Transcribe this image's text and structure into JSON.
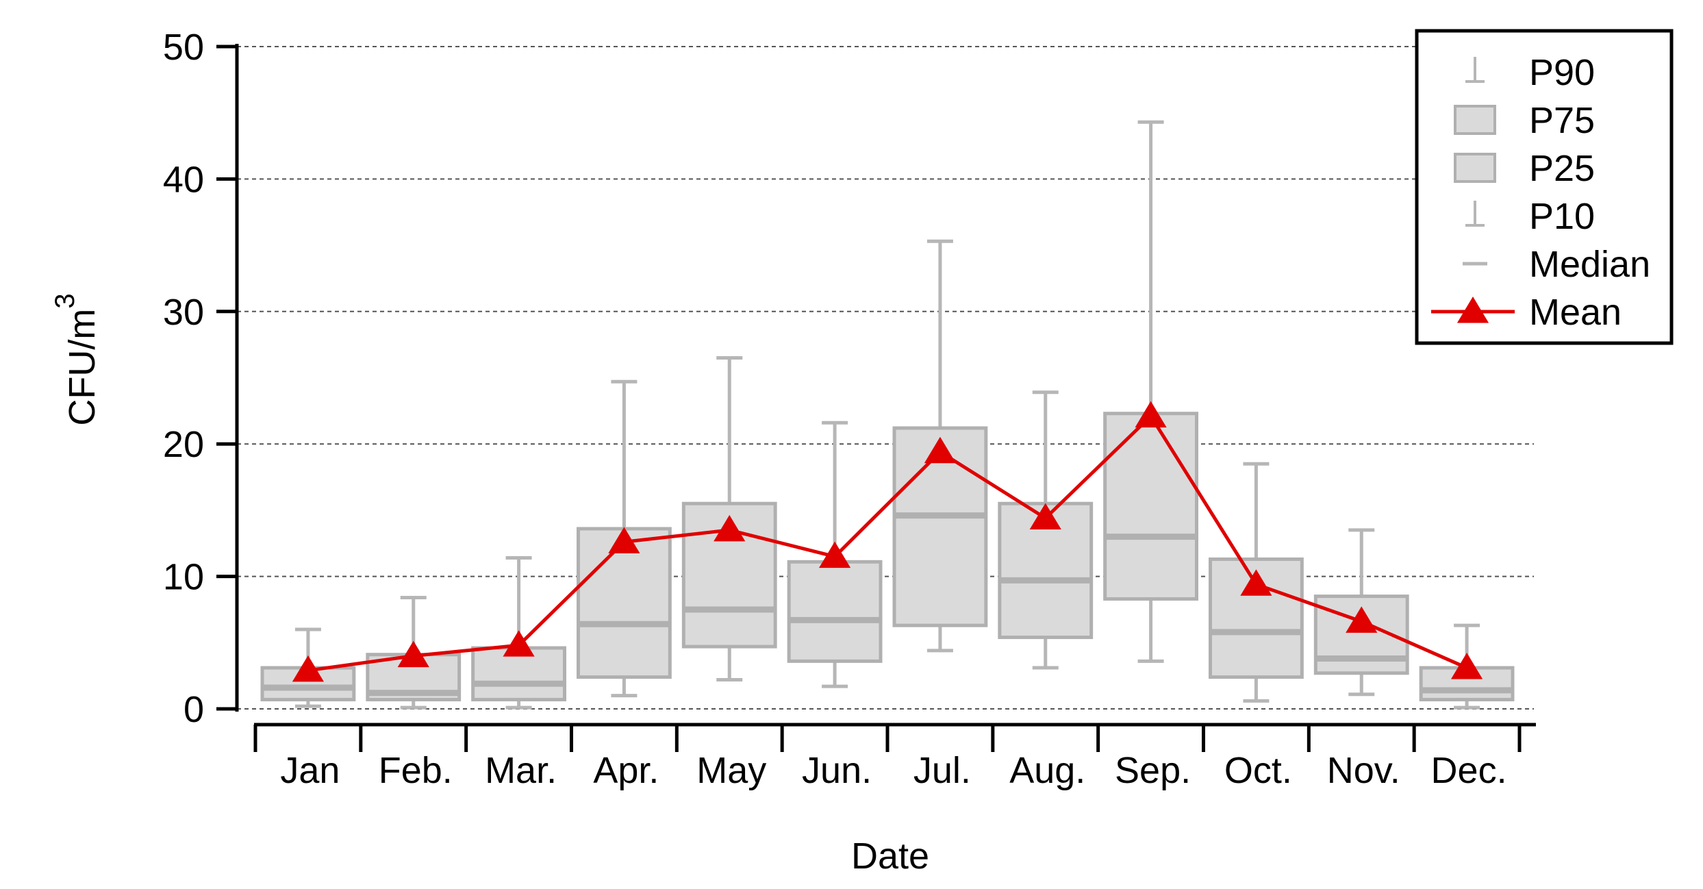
{
  "chart_data": {
    "type": "box",
    "xlabel": "Date",
    "ylabel_main": "CFU/m",
    "ylabel_sup": "3",
    "ylim": [
      0,
      50
    ],
    "yticks": [
      0,
      10,
      20,
      30,
      40,
      50
    ],
    "grid": "horizontal dashed",
    "legend_position": "top-right",
    "categories": [
      "Jan",
      "Feb.",
      "Mar.",
      "Apr.",
      "May",
      "Jun.",
      "Jul.",
      "Aug.",
      "Sep.",
      "Oct.",
      "Nov.",
      "Dec."
    ],
    "series": [
      {
        "name": "P90",
        "values": [
          6.0,
          8.4,
          11.4,
          24.7,
          26.5,
          21.6,
          35.3,
          23.9,
          44.3,
          18.5,
          13.5,
          6.3
        ]
      },
      {
        "name": "P75",
        "values": [
          3.1,
          4.1,
          4.6,
          13.6,
          15.5,
          11.1,
          21.2,
          15.5,
          22.3,
          11.3,
          8.5,
          3.1
        ]
      },
      {
        "name": "P25",
        "values": [
          0.7,
          0.7,
          0.7,
          2.4,
          4.7,
          3.6,
          6.3,
          5.4,
          8.3,
          2.4,
          2.7,
          0.7
        ]
      },
      {
        "name": "P10",
        "values": [
          0.2,
          0.1,
          0.1,
          1.0,
          2.2,
          1.7,
          4.4,
          3.1,
          3.6,
          0.6,
          1.1,
          0.1
        ]
      },
      {
        "name": "Median",
        "values": [
          1.6,
          1.2,
          1.9,
          6.4,
          7.5,
          6.7,
          14.6,
          9.7,
          13.0,
          5.8,
          3.8,
          1.4
        ]
      },
      {
        "name": "Mean",
        "values": [
          2.9,
          4.0,
          4.8,
          12.6,
          13.5,
          11.5,
          19.4,
          14.4,
          22.1,
          9.4,
          6.6,
          3.1
        ]
      }
    ],
    "colors": {
      "box_fill": "#dadada",
      "box_stroke": "#b0b0b0",
      "mean": "#e00000",
      "axis": "#000000",
      "grid": "#555555"
    }
  }
}
